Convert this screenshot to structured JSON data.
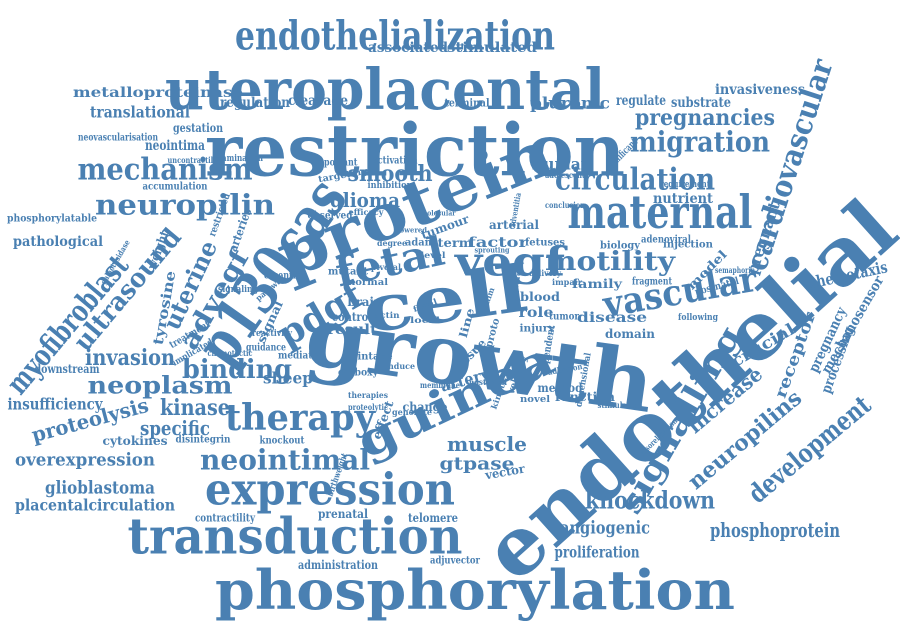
{
  "color": "#4a80b2",
  "words": [
    "endothelialization",
    "uteroplacental",
    "restriction",
    "protein",
    "p130cas",
    "growth",
    "cell",
    "endothelial",
    "guinea",
    "phosphorylation",
    "transduction",
    "expression",
    "maternal",
    "circulation",
    "vascular",
    "vegf",
    "fetal",
    "pdgf",
    "signalling",
    "mechanism",
    "neuropilin",
    "cardiovascular",
    "migration",
    "pregnancies",
    "motility",
    "ultrasound",
    "myofibroblast",
    "advegf",
    "uterine",
    "binding",
    "therapy",
    "neointimal",
    "knockdown",
    "development",
    "neuropilins",
    "neoplasm",
    "invasion",
    "kinase",
    "proteolysis",
    "specific",
    "insufficiency",
    "overexpression",
    "glioblastoma",
    "placentalcirculation",
    "angiogenic",
    "phosphoprotein",
    "proliferation",
    "muscle",
    "gtpase",
    "smooth",
    "glioma",
    "invasiveness",
    "metalloproteinase",
    "translational",
    "regulation",
    "cleavage",
    "associated",
    "stimulated",
    "pluronic",
    "regulate",
    "substrate",
    "gestation",
    "neointima",
    "neovascularisation",
    "human",
    "nutrient",
    "pregnant",
    "chemotaxis",
    "mechanosensor",
    "processing",
    "pregnancy",
    "receptor",
    "crucial",
    "increase",
    "factor",
    "arterial",
    "term",
    "tumour",
    "adam",
    "family",
    "biology",
    "adenoviral",
    "injection",
    "model",
    "postnatal",
    "blood",
    "role",
    "injury",
    "tumor",
    "disease",
    "domain",
    "result",
    "control",
    "brain",
    "sheep",
    "artery",
    "tissue",
    "method",
    "function",
    "change",
    "dependent",
    "vector",
    "velocity",
    "cytokines",
    "disintegrin",
    "knockout",
    "contractility",
    "prenatal",
    "telomere",
    "administration",
    "adjuvector",
    "downstream",
    "pathological",
    "phosphorylatable",
    "accumulation",
    "tyrosine",
    "weight",
    "arteries",
    "restricted",
    "signal",
    "guidance",
    "mediate",
    "mutant",
    "activation",
    "inhibition",
    "important",
    "observed",
    "targeting",
    "efficacy",
    "terminal",
    "significant",
    "requirement",
    "following",
    "semaphorin",
    "examination",
    "uncontractility",
    "adolescent",
    "conclusion",
    "adventitia",
    "fetuses",
    "fragment",
    "essential",
    "signaling",
    "pathway",
    "treatment",
    "galactosidase",
    "implicated",
    "chemotactic",
    "reactivity",
    "normal",
    "pivotal",
    "local",
    "line",
    "proto",
    "intake",
    "carboxy",
    "membrane",
    "novel",
    "effect",
    "therapies",
    "proteolytic",
    "birthweight",
    "generate",
    "vasorelaxation",
    "stimulation",
    "dimensional",
    "kinetics",
    "actin",
    "impair",
    "level",
    "degree",
    "lowered",
    "molecular",
    "focal",
    "anim",
    "adhesion",
    "delivery",
    "induce",
    "postnatal",
    "sprouting",
    "hypertrophy"
  ]
}
